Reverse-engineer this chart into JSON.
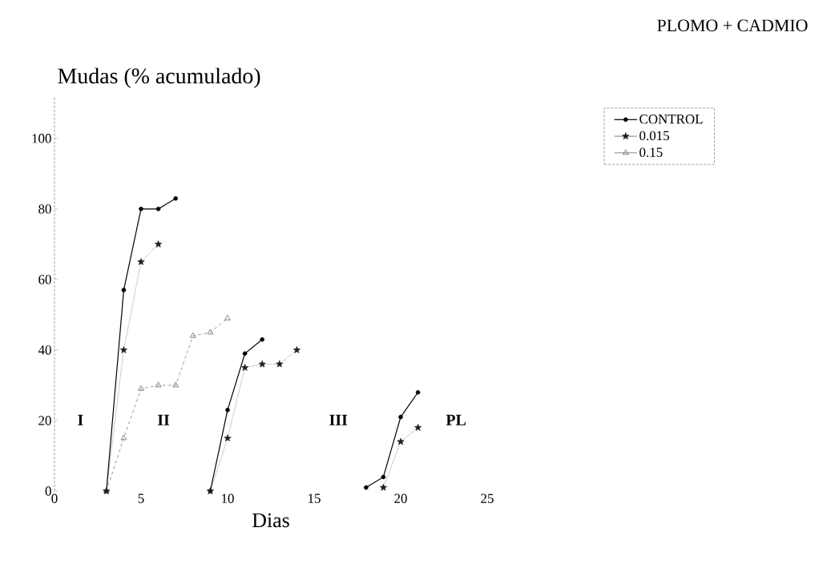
{
  "chart_data": {
    "type": "line",
    "title": "PLOMO + CADMIO",
    "ylabel": "Mudas (% acumulado)",
    "xlabel": "Dias",
    "x": [
      3,
      4,
      5,
      6,
      7,
      8,
      9,
      10,
      11,
      12,
      13,
      14,
      15,
      16,
      17,
      18,
      19,
      20,
      21
    ],
    "series": [
      {
        "name": "CONTROL",
        "color": "#000000",
        "marker": "circle",
        "line_style": "solid",
        "values": [
          0,
          57,
          80,
          80,
          83,
          null,
          0,
          23,
          39,
          43,
          null,
          null,
          null,
          null,
          null,
          1,
          4,
          21,
          28
        ]
      },
      {
        "name": "0.015",
        "color": "#1e1e1e",
        "marker": "star",
        "line_style": "dotted",
        "values": [
          0,
          40,
          65,
          70,
          null,
          null,
          0,
          15,
          35,
          36,
          36,
          40,
          null,
          null,
          null,
          null,
          1,
          14,
          18
        ]
      },
      {
        "name": "0.15",
        "color": "#3c3c3c",
        "marker": "triangle",
        "line_style": "dashed",
        "values": [
          0,
          15,
          29,
          30,
          30,
          44,
          45,
          49,
          null,
          null,
          null,
          null,
          null,
          null,
          null,
          null,
          null,
          null,
          null
        ]
      }
    ],
    "xlim": [
      0,
      25
    ],
    "xticks": [
      0,
      5,
      10,
      15,
      20,
      25
    ],
    "ylim": [
      0,
      112
    ],
    "yticks": [
      0,
      20,
      40,
      60,
      80,
      100
    ],
    "legend": "top right",
    "grid": false,
    "annotations": [
      "I",
      "II",
      "III",
      "PL"
    ]
  }
}
